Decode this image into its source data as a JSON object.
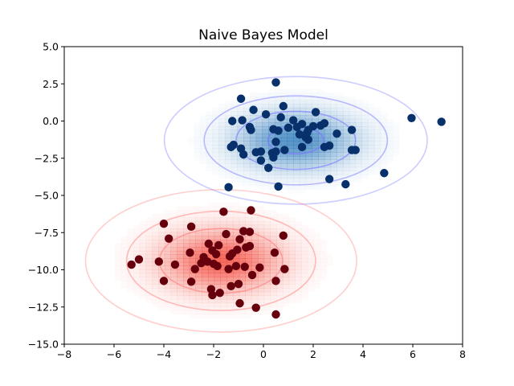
{
  "chart_data": {
    "type": "scatter",
    "title": "Naive Bayes Model",
    "xlabel": "",
    "ylabel": "",
    "xlim": [
      -8,
      8
    ],
    "ylim": [
      -15,
      5
    ],
    "xticks": [
      -8,
      -6,
      -4,
      -2,
      0,
      2,
      4,
      6,
      8
    ],
    "xtick_labels": [
      "−8",
      "−6",
      "−4",
      "−2",
      "0",
      "2",
      "4",
      "6",
      "8"
    ],
    "yticks": [
      5,
      2.5,
      0,
      -2.5,
      -5,
      -7.5,
      -10,
      -12.5,
      -15
    ],
    "ytick_labels": [
      "5.0",
      "2.5",
      "0.0",
      "−2.5",
      "−5.0",
      "−7.5",
      "−10.0",
      "−12.5",
      "−15.0"
    ],
    "grid": false,
    "series": [
      {
        "color": "#08306b",
        "density_color": "#2171b5",
        "contour_color": "#7b7bff",
        "center": [
          1.3,
          -1.3
        ],
        "sigma": [
          1.6,
          1.3
        ],
        "points": [
          [
            0.5,
            2.6
          ],
          [
            -0.9,
            1.5
          ],
          [
            0.8,
            1.0
          ],
          [
            -0.4,
            0.75
          ],
          [
            0.1,
            0.45
          ],
          [
            0.7,
            0.25
          ],
          [
            2.1,
            0.6
          ],
          [
            -1.25,
            0.0
          ],
          [
            -0.85,
            0.05
          ],
          [
            1.2,
            0.05
          ],
          [
            2.45,
            -0.15
          ],
          [
            1.55,
            -0.2
          ],
          [
            -0.55,
            -0.4
          ],
          [
            1.35,
            -0.4
          ],
          [
            1.0,
            -0.45
          ],
          [
            2.3,
            -0.3
          ],
          [
            2.0,
            -0.35
          ],
          [
            -0.5,
            -0.6
          ],
          [
            0.4,
            -0.55
          ],
          [
            1.8,
            -0.6
          ],
          [
            3.55,
            -0.6
          ],
          [
            1.75,
            -0.8
          ],
          [
            0.6,
            -0.65
          ],
          [
            1.45,
            -0.9
          ],
          [
            2.95,
            -0.85
          ],
          [
            1.7,
            -1.1
          ],
          [
            1.8,
            -1.25
          ],
          [
            0.5,
            -1.4
          ],
          [
            2.65,
            -1.65
          ],
          [
            -1.3,
            -1.75
          ],
          [
            -1.2,
            -1.6
          ],
          [
            1.55,
            -1.75
          ],
          [
            2.45,
            -1.75
          ],
          [
            0.5,
            -2.05
          ],
          [
            0.85,
            -1.95
          ],
          [
            -0.9,
            -1.85
          ],
          [
            3.7,
            -1.95
          ],
          [
            3.55,
            -1.95
          ],
          [
            -0.3,
            -2.1
          ],
          [
            0.35,
            -2.15
          ],
          [
            -0.1,
            -2.05
          ],
          [
            -0.8,
            -2.25
          ],
          [
            0.4,
            -2.45
          ],
          [
            -0.1,
            -2.65
          ],
          [
            0.2,
            -3.15
          ],
          [
            4.85,
            -3.5
          ],
          [
            2.65,
            -3.9
          ],
          [
            3.3,
            -4.25
          ],
          [
            -1.4,
            -4.45
          ],
          [
            0.6,
            -4.4
          ],
          [
            5.95,
            0.2
          ],
          [
            7.15,
            -0.05
          ]
        ]
      },
      {
        "color": "#67000d",
        "density_color": "#ef3b2c",
        "contour_color": "#ff8080",
        "center": [
          -1.7,
          -9.4
        ],
        "sigma": [
          1.65,
          1.45
        ],
        "points": [
          [
            -1.6,
            -6.1
          ],
          [
            -0.5,
            -6.0
          ],
          [
            -4.0,
            -6.9
          ],
          [
            -2.9,
            -7.1
          ],
          [
            -0.8,
            -7.4
          ],
          [
            -0.55,
            -7.45
          ],
          [
            0.8,
            -7.7
          ],
          [
            -3.8,
            -7.9
          ],
          [
            -1.5,
            -7.6
          ],
          [
            -0.95,
            -7.95
          ],
          [
            -2.2,
            -8.25
          ],
          [
            -1.8,
            -8.35
          ],
          [
            -0.55,
            -8.4
          ],
          [
            -1.05,
            -8.65
          ],
          [
            -0.7,
            -8.5
          ],
          [
            -2.05,
            -8.7
          ],
          [
            -2.95,
            -8.85
          ],
          [
            -1.9,
            -8.95
          ],
          [
            -1.25,
            -8.9
          ],
          [
            -2.4,
            -9.15
          ],
          [
            -1.35,
            -9.1
          ],
          [
            0.45,
            -8.85
          ],
          [
            -5.0,
            -9.3
          ],
          [
            -3.55,
            -9.65
          ],
          [
            -4.2,
            -9.45
          ],
          [
            -2.5,
            -9.55
          ],
          [
            -2.0,
            -9.6
          ],
          [
            -1.85,
            -9.75
          ],
          [
            -5.3,
            -9.65
          ],
          [
            -1.4,
            -9.95
          ],
          [
            -1.1,
            -9.75
          ],
          [
            -0.75,
            -9.8
          ],
          [
            -0.15,
            -9.85
          ],
          [
            0.85,
            -9.95
          ],
          [
            -2.75,
            -9.95
          ],
          [
            -2.25,
            -9.45
          ],
          [
            -0.45,
            -10.35
          ],
          [
            -2.9,
            -10.8
          ],
          [
            -4.0,
            -10.75
          ],
          [
            0.5,
            -10.75
          ],
          [
            -1.0,
            -10.95
          ],
          [
            -1.3,
            -11.1
          ],
          [
            -2.1,
            -11.3
          ],
          [
            -1.75,
            -11.55
          ],
          [
            -2.05,
            -11.7
          ],
          [
            -0.95,
            -12.25
          ],
          [
            -0.3,
            -12.55
          ],
          [
            0.5,
            -13.0
          ]
        ]
      }
    ]
  }
}
